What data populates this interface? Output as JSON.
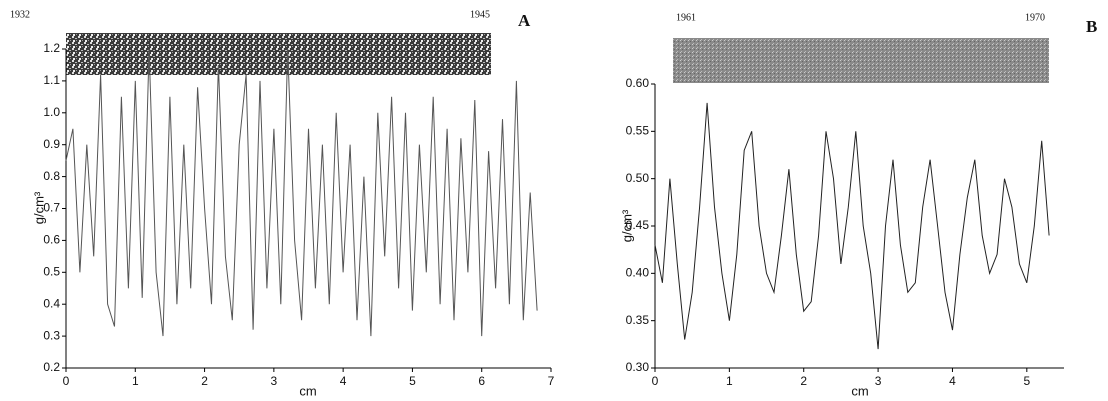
{
  "chart_data": [
    {
      "type": "line",
      "panel_label": "A",
      "year_start": "1932",
      "year_end": "1945",
      "ylabel": "g/cm³",
      "xlabel": "cm",
      "color": "#555555",
      "xlim": [
        0,
        7
      ],
      "ylim": [
        0.2,
        1.2
      ],
      "xticks": [
        0,
        1,
        2,
        3,
        4,
        5,
        6,
        7
      ],
      "yticks": [
        0.2,
        0.3,
        0.4,
        0.5,
        0.6,
        0.7,
        0.8,
        0.9,
        {
          "value": 1,
          "label": "1.0"
        },
        1.1,
        1.2
      ],
      "x": [
        0,
        0.1,
        0.2,
        0.3,
        0.4,
        0.5,
        0.6,
        0.7,
        0.8,
        0.9,
        1,
        1.1,
        1.2,
        1.3,
        1.4,
        1.5,
        1.6,
        1.7,
        1.8,
        1.9,
        2,
        2.1,
        2.2,
        2.3,
        2.4,
        2.5,
        2.6,
        2.7,
        2.8,
        2.9,
        3,
        3.1,
        3.2,
        3.3,
        3.4,
        3.5,
        3.6,
        3.7,
        3.8,
        3.9,
        4,
        4.1,
        4.2,
        4.3,
        4.4,
        4.5,
        4.6,
        4.7,
        4.8,
        4.9,
        5,
        5.1,
        5.2,
        5.3,
        5.4,
        5.5,
        5.6,
        5.7,
        5.8,
        5.9,
        6,
        6.1,
        6.2,
        6.3,
        6.4,
        6.5,
        6.6,
        6.7,
        6.8
      ],
      "values": [
        0.85,
        0.95,
        0.5,
        0.9,
        0.55,
        1.12,
        0.4,
        0.33,
        1.05,
        0.45,
        1.1,
        0.42,
        1.2,
        0.5,
        0.3,
        1.05,
        0.4,
        0.9,
        0.45,
        1.08,
        0.7,
        0.4,
        1.15,
        0.55,
        0.35,
        0.9,
        1.12,
        0.32,
        1.1,
        0.45,
        0.95,
        0.4,
        1.2,
        0.6,
        0.35,
        0.95,
        0.45,
        0.9,
        0.4,
        1.0,
        0.5,
        0.9,
        0.35,
        0.8,
        0.3,
        1.0,
        0.55,
        1.05,
        0.45,
        1.0,
        0.38,
        0.9,
        0.5,
        1.05,
        0.4,
        0.95,
        0.35,
        0.92,
        0.5,
        1.04,
        0.3,
        0.88,
        0.45,
        0.98,
        0.4,
        1.1,
        0.35,
        0.75,
        0.38
      ]
    },
    {
      "type": "line",
      "panel_label": "B",
      "year_start": "1961",
      "year_end": "1970",
      "ylabel": "g/cm³",
      "xlabel": "cm",
      "color": "#222222",
      "xlim": [
        0,
        5.5
      ],
      "ylim": [
        0.3,
        0.6
      ],
      "xticks": [
        0,
        1,
        2,
        3,
        4,
        5
      ],
      "yticks": [
        {
          "value": 0.3,
          "label": "0.30"
        },
        0.35,
        {
          "value": 0.4,
          "label": "0.40"
        },
        0.45,
        {
          "value": 0.5,
          "label": "0.50"
        },
        0.55,
        {
          "value": 0.6,
          "label": "0.60"
        }
      ],
      "x": [
        0,
        0.1,
        0.2,
        0.3,
        0.4,
        0.5,
        0.6,
        0.7,
        0.8,
        0.9,
        1,
        1.1,
        1.2,
        1.3,
        1.4,
        1.5,
        1.6,
        1.7,
        1.8,
        1.9,
        2,
        2.1,
        2.2,
        2.3,
        2.4,
        2.5,
        2.6,
        2.7,
        2.8,
        2.9,
        3,
        3.1,
        3.2,
        3.3,
        3.4,
        3.5,
        3.6,
        3.7,
        3.8,
        3.9,
        4,
        4.1,
        4.2,
        4.3,
        4.4,
        4.5,
        4.6,
        4.7,
        4.8,
        4.9,
        5,
        5.1,
        5.2,
        5.3
      ],
      "values": [
        0.43,
        0.39,
        0.5,
        0.41,
        0.33,
        0.38,
        0.47,
        0.58,
        0.47,
        0.4,
        0.35,
        0.42,
        0.53,
        0.55,
        0.45,
        0.4,
        0.38,
        0.44,
        0.51,
        0.42,
        0.36,
        0.37,
        0.44,
        0.55,
        0.5,
        0.41,
        0.47,
        0.55,
        0.45,
        0.4,
        0.32,
        0.45,
        0.52,
        0.43,
        0.38,
        0.39,
        0.47,
        0.52,
        0.45,
        0.38,
        0.34,
        0.42,
        0.48,
        0.52,
        0.44,
        0.4,
        0.42,
        0.5,
        0.47,
        0.41,
        0.39,
        0.45,
        0.54,
        0.44
      ]
    }
  ]
}
